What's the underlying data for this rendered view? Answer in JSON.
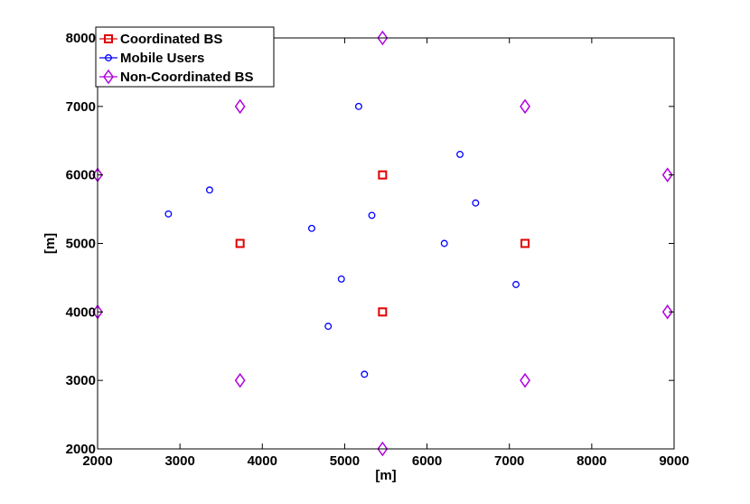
{
  "chart_data": {
    "type": "scatter",
    "title": "",
    "xlabel": "[m]",
    "ylabel": "[m]",
    "xlim": [
      2000,
      9000
    ],
    "ylim": [
      2000,
      8000
    ],
    "xticks": [
      2000,
      3000,
      4000,
      5000,
      6000,
      7000,
      8000,
      9000
    ],
    "yticks": [
      2000,
      3000,
      4000,
      5000,
      6000,
      7000,
      8000
    ],
    "grid": false,
    "legend_position": "top-left",
    "series": [
      {
        "name": "Coordinated BS",
        "marker": "square",
        "color": "#e00000",
        "points": [
          [
            3730,
            5000
          ],
          [
            5460,
            6000
          ],
          [
            5460,
            4000
          ],
          [
            7190,
            5000
          ]
        ]
      },
      {
        "name": "Mobile Users",
        "marker": "circle",
        "color": "#0000ff",
        "points": [
          [
            2860,
            5430
          ],
          [
            3360,
            5780
          ],
          [
            5170,
            7000
          ],
          [
            6400,
            6300
          ],
          [
            6590,
            5590
          ],
          [
            5330,
            5410
          ],
          [
            4600,
            5220
          ],
          [
            6210,
            5000
          ],
          [
            4960,
            4480
          ],
          [
            7080,
            4400
          ],
          [
            4800,
            3790
          ],
          [
            5240,
            3090
          ]
        ]
      },
      {
        "name": "Non-Coordinated BS",
        "marker": "diamond",
        "color": "#b000e0",
        "points": [
          [
            5460,
            8000
          ],
          [
            3730,
            7000
          ],
          [
            7190,
            7000
          ],
          [
            2000,
            6000
          ],
          [
            8920,
            6000
          ],
          [
            2000,
            4000
          ],
          [
            8920,
            4000
          ],
          [
            3730,
            3000
          ],
          [
            7190,
            3000
          ],
          [
            5460,
            2000
          ]
        ]
      }
    ]
  }
}
